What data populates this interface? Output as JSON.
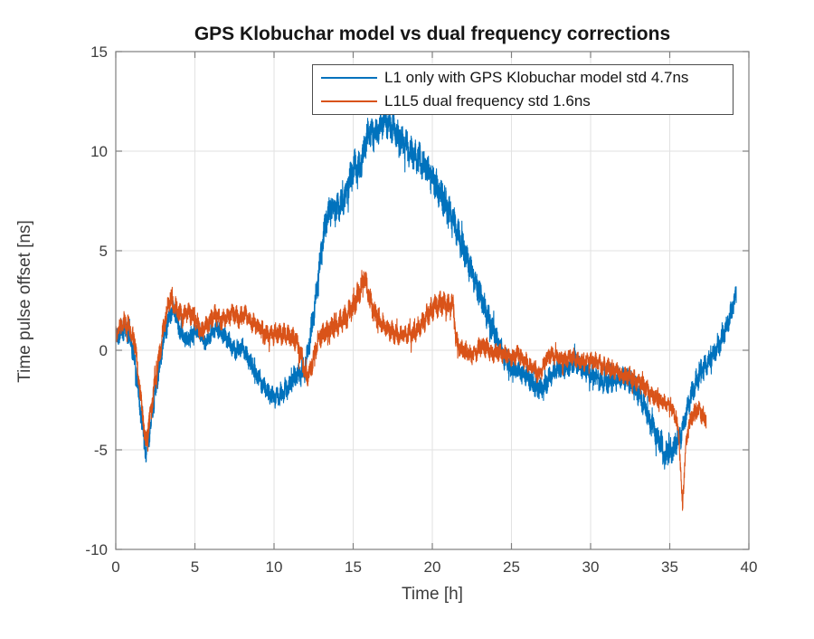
{
  "figure": {
    "background": "#ffffff",
    "axis_color": "#7f7f7f",
    "grid_color": "#e2e2e2",
    "tick_text_color": "#3d3d3d",
    "title_color": "#161616"
  },
  "chart_data": {
    "type": "line",
    "title": "GPS Klobuchar model vs dual frequency corrections",
    "xlabel": "Time [h]",
    "ylabel": "Time pulse offset [ns]",
    "xlim": [
      0,
      40
    ],
    "ylim": [
      -10,
      15
    ],
    "xticks": [
      0,
      5,
      10,
      15,
      20,
      25,
      30,
      35,
      40
    ],
    "yticks": [
      -10,
      -5,
      0,
      5,
      10,
      15
    ],
    "grid": true,
    "legend_position": "north inside, top-center",
    "series": [
      {
        "name": "L1 only with GPS Klobuchar model std 4.7ns",
        "std_ns": 4.7,
        "color": "#0072BD",
        "noise_seed": 12345,
        "points": [
          [
            0,
            0.5
          ],
          [
            0.3,
            1.0
          ],
          [
            0.6,
            1.1
          ],
          [
            0.9,
            0.7
          ],
          [
            1.2,
            -0.6
          ],
          [
            1.5,
            -2.6
          ],
          [
            1.9,
            -5.3
          ],
          [
            2.2,
            -3.8
          ],
          [
            2.6,
            -1.6
          ],
          [
            3.0,
            0.4
          ],
          [
            3.4,
            1.8
          ],
          [
            3.7,
            2.1
          ],
          [
            4.0,
            1.1
          ],
          [
            4.4,
            0.5
          ],
          [
            4.8,
            0.8
          ],
          [
            5.2,
            1.1
          ],
          [
            5.6,
            0.4
          ],
          [
            6.0,
            0.7
          ],
          [
            6.4,
            1.2
          ],
          [
            6.8,
            0.8
          ],
          [
            7.2,
            0.4
          ],
          [
            7.6,
            -0.1
          ],
          [
            8.0,
            0.2
          ],
          [
            8.4,
            -0.5
          ],
          [
            8.8,
            -1.1
          ],
          [
            9.2,
            -1.6
          ],
          [
            9.6,
            -2.1
          ],
          [
            10.0,
            -2.4
          ],
          [
            10.4,
            -2.3
          ],
          [
            10.8,
            -2.0
          ],
          [
            11.2,
            -1.4
          ],
          [
            11.6,
            -1.2
          ],
          [
            11.9,
            -1.0
          ],
          [
            12.1,
            -0.3
          ],
          [
            12.4,
            1.2
          ],
          [
            12.7,
            3.0
          ],
          [
            13.0,
            5.0
          ],
          [
            13.3,
            6.6
          ],
          [
            13.6,
            7.1
          ],
          [
            14.0,
            7.1
          ],
          [
            14.4,
            7.6
          ],
          [
            14.8,
            8.5
          ],
          [
            15.1,
            9.3
          ],
          [
            15.4,
            9.1
          ],
          [
            15.7,
            10.1
          ],
          [
            16.0,
            11.0
          ],
          [
            16.3,
            10.7
          ],
          [
            16.6,
            11.1
          ],
          [
            17.0,
            11.6
          ],
          [
            17.4,
            11.2
          ],
          [
            17.8,
            10.8
          ],
          [
            18.2,
            10.4
          ],
          [
            18.6,
            10.0
          ],
          [
            19.0,
            9.7
          ],
          [
            19.4,
            9.4
          ],
          [
            19.8,
            8.9
          ],
          [
            20.2,
            8.3
          ],
          [
            20.6,
            7.7
          ],
          [
            21.0,
            7.0
          ],
          [
            21.5,
            6.1
          ],
          [
            22.0,
            5.0
          ],
          [
            22.5,
            3.9
          ],
          [
            23.0,
            2.8
          ],
          [
            23.5,
            1.7
          ],
          [
            24.0,
            0.7
          ],
          [
            24.5,
            -0.3
          ],
          [
            25.0,
            -0.9
          ],
          [
            25.5,
            -1.1
          ],
          [
            26.0,
            -1.3
          ],
          [
            26.5,
            -1.8
          ],
          [
            27.0,
            -2.0
          ],
          [
            27.4,
            -1.3
          ],
          [
            27.8,
            -1.0
          ],
          [
            28.2,
            -0.9
          ],
          [
            28.6,
            -0.8
          ],
          [
            29.0,
            -0.6
          ],
          [
            29.4,
            -0.8
          ],
          [
            29.8,
            -1.1
          ],
          [
            30.2,
            -1.3
          ],
          [
            30.6,
            -1.5
          ],
          [
            31.0,
            -1.6
          ],
          [
            31.4,
            -1.5
          ],
          [
            31.8,
            -1.3
          ],
          [
            32.2,
            -1.4
          ],
          [
            32.6,
            -1.7
          ],
          [
            33.0,
            -2.1
          ],
          [
            33.4,
            -2.8
          ],
          [
            33.8,
            -3.7
          ],
          [
            34.2,
            -4.4
          ],
          [
            34.5,
            -4.8
          ],
          [
            34.7,
            -5.5
          ],
          [
            34.9,
            -5.0
          ],
          [
            35.1,
            -5.1
          ],
          [
            35.4,
            -4.7
          ],
          [
            35.7,
            -4.3
          ],
          [
            36.0,
            -3.3
          ],
          [
            36.3,
            -2.4
          ],
          [
            36.6,
            -1.7
          ],
          [
            37.0,
            -1.0
          ],
          [
            37.4,
            -0.6
          ],
          [
            37.8,
            -0.2
          ],
          [
            38.2,
            0.4
          ],
          [
            38.6,
            1.2
          ],
          [
            39.0,
            2.2
          ],
          [
            39.2,
            2.8
          ]
        ],
        "noise_amplitude": [
          [
            0,
            0.5
          ],
          [
            1.5,
            0.65
          ],
          [
            2.5,
            0.6
          ],
          [
            4,
            0.5
          ],
          [
            9,
            0.5
          ],
          [
            11,
            0.55
          ],
          [
            12.5,
            0.8
          ],
          [
            15,
            0.85
          ],
          [
            17,
            0.8
          ],
          [
            19,
            0.85
          ],
          [
            21,
            0.9
          ],
          [
            23,
            0.75
          ],
          [
            25,
            0.6
          ],
          [
            28,
            0.55
          ],
          [
            31,
            0.6
          ],
          [
            33,
            0.65
          ],
          [
            34.5,
            0.75
          ],
          [
            36,
            0.6
          ],
          [
            39.2,
            0.55
          ]
        ]
      },
      {
        "name": "L1L5 dual frequency std 1.6ns",
        "std_ns": 1.6,
        "color": "#D95319",
        "noise_seed": 77777,
        "points": [
          [
            0,
            0.7
          ],
          [
            0.3,
            1.2
          ],
          [
            0.6,
            1.4
          ],
          [
            0.9,
            1.1
          ],
          [
            1.2,
            0.4
          ],
          [
            1.5,
            -1.8
          ],
          [
            1.9,
            -4.6
          ],
          [
            2.2,
            -3.2
          ],
          [
            2.6,
            -1.0
          ],
          [
            3.0,
            1.0
          ],
          [
            3.4,
            2.6
          ],
          [
            3.8,
            2.1
          ],
          [
            4.2,
            1.6
          ],
          [
            4.6,
            1.9
          ],
          [
            5.0,
            1.6
          ],
          [
            5.4,
            0.9
          ],
          [
            5.8,
            1.3
          ],
          [
            6.2,
            1.8
          ],
          [
            6.6,
            1.5
          ],
          [
            7.0,
            1.6
          ],
          [
            7.4,
            1.9
          ],
          [
            7.8,
            1.6
          ],
          [
            8.2,
            1.8
          ],
          [
            8.6,
            1.4
          ],
          [
            9.0,
            1.2
          ],
          [
            9.4,
            0.8
          ],
          [
            9.8,
            0.7
          ],
          [
            10.2,
            0.9
          ],
          [
            10.6,
            0.8
          ],
          [
            11.0,
            0.7
          ],
          [
            11.4,
            0.5
          ],
          [
            11.8,
            -0.6
          ],
          [
            12.1,
            -1.4
          ],
          [
            12.4,
            -0.7
          ],
          [
            12.7,
            0.3
          ],
          [
            13.0,
            0.8
          ],
          [
            13.4,
            1.0
          ],
          [
            13.8,
            1.2
          ],
          [
            14.2,
            1.4
          ],
          [
            14.6,
            1.7
          ],
          [
            15.0,
            2.2
          ],
          [
            15.4,
            3.0
          ],
          [
            15.7,
            3.7
          ],
          [
            16.0,
            2.7
          ],
          [
            16.3,
            1.9
          ],
          [
            16.7,
            1.5
          ],
          [
            17.1,
            1.2
          ],
          [
            17.5,
            0.9
          ],
          [
            17.9,
            0.7
          ],
          [
            18.3,
            0.9
          ],
          [
            18.7,
            0.8
          ],
          [
            19.1,
            1.1
          ],
          [
            19.5,
            1.5
          ],
          [
            19.9,
            2.0
          ],
          [
            20.3,
            2.3
          ],
          [
            20.7,
            2.4
          ],
          [
            21.0,
            2.2
          ],
          [
            21.3,
            2.4
          ],
          [
            21.5,
            0.4
          ],
          [
            21.8,
            0.1
          ],
          [
            22.2,
            -0.1
          ],
          [
            22.6,
            -0.3
          ],
          [
            23.0,
            0.2
          ],
          [
            23.4,
            0.2
          ],
          [
            23.8,
            -0.2
          ],
          [
            24.2,
            -0.1
          ],
          [
            24.6,
            -0.2
          ],
          [
            25.0,
            -0.4
          ],
          [
            25.4,
            -0.2
          ],
          [
            25.8,
            -0.5
          ],
          [
            26.2,
            -0.8
          ],
          [
            26.8,
            -1.3
          ],
          [
            27.2,
            -0.4
          ],
          [
            27.6,
            -0.2
          ],
          [
            28.0,
            -0.4
          ],
          [
            28.4,
            -0.5
          ],
          [
            28.8,
            -0.3
          ],
          [
            29.2,
            -0.5
          ],
          [
            29.6,
            -0.6
          ],
          [
            30.0,
            -0.5
          ],
          [
            30.4,
            -0.6
          ],
          [
            30.8,
            -0.8
          ],
          [
            31.2,
            -0.9
          ],
          [
            31.6,
            -1.0
          ],
          [
            32.0,
            -1.2
          ],
          [
            32.4,
            -1.3
          ],
          [
            32.8,
            -1.5
          ],
          [
            33.2,
            -1.7
          ],
          [
            33.6,
            -2.0
          ],
          [
            34.0,
            -2.3
          ],
          [
            34.4,
            -2.5
          ],
          [
            34.8,
            -2.7
          ],
          [
            35.1,
            -2.9
          ],
          [
            35.4,
            -3.4
          ],
          [
            35.6,
            -4.5
          ],
          [
            35.8,
            -7.9
          ],
          [
            36.0,
            -5.0
          ],
          [
            36.2,
            -3.8
          ],
          [
            36.5,
            -3.1
          ],
          [
            36.8,
            -3.0
          ],
          [
            37.1,
            -3.3
          ],
          [
            37.3,
            -3.5
          ]
        ],
        "noise_amplitude": [
          [
            0,
            0.5
          ],
          [
            1.8,
            0.6
          ],
          [
            3.5,
            0.55
          ],
          [
            8,
            0.5
          ],
          [
            12,
            0.55
          ],
          [
            15.5,
            0.65
          ],
          [
            18,
            0.5
          ],
          [
            20.5,
            0.65
          ],
          [
            22,
            0.5
          ],
          [
            28,
            0.45
          ],
          [
            33,
            0.5
          ],
          [
            35.5,
            0.4
          ],
          [
            37.3,
            0.5
          ]
        ]
      }
    ]
  }
}
